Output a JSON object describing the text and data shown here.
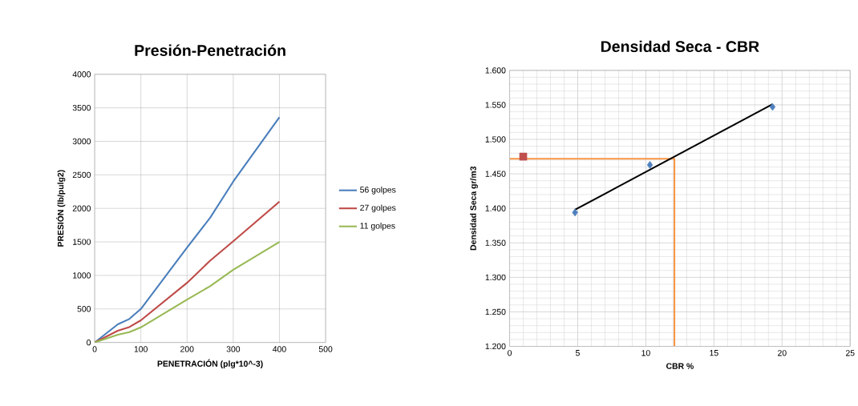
{
  "chart_data": [
    {
      "type": "line",
      "title": "Presión-Penetración",
      "xlabel": "PENETRACIÓN (plg*10^-3)",
      "ylabel": "PRESIÓN (lb/pulg2)",
      "xlim": [
        0,
        500
      ],
      "xticks": [
        0,
        100,
        200,
        300,
        400,
        500
      ],
      "ylim": [
        0,
        4000
      ],
      "yticks": [
        0,
        500,
        1000,
        1500,
        2000,
        2500,
        3000,
        3500,
        4000
      ],
      "grid": true,
      "legend": "right",
      "marker": "none",
      "x": [
        0,
        50,
        75,
        100,
        200,
        250,
        300,
        400
      ],
      "series": [
        {
          "name": "56 golpes",
          "color": "#4a7ebb",
          "values": [
            0,
            270,
            350,
            500,
            1415,
            1860,
            2400,
            3360
          ]
        },
        {
          "name": "27 golpes",
          "color": "#be4b48",
          "values": [
            0,
            175,
            230,
            330,
            890,
            1220,
            1510,
            2100
          ]
        },
        {
          "name": "11 golpes",
          "color": "#98b954",
          "values": [
            0,
            115,
            155,
            225,
            640,
            840,
            1085,
            1500
          ]
        }
      ]
    },
    {
      "type": "scatter",
      "title": "Densidad Seca - CBR",
      "xlabel": "CBR %",
      "ylabel": "Densidad  Seca gr/m3",
      "xlim": [
        0,
        25
      ],
      "xticks": [
        0,
        5,
        10,
        15,
        20,
        25
      ],
      "ylim": [
        1.2,
        1.6
      ],
      "yticks": [
        {
          "value": 1.2,
          "label": "1.200"
        },
        {
          "value": 1.25,
          "label": "1.250"
        },
        {
          "value": 1.3,
          "label": "1.300"
        },
        {
          "value": 1.35,
          "label": "1.350"
        },
        {
          "value": 1.4,
          "label": "1.400"
        },
        {
          "value": 1.45,
          "label": "1.450"
        },
        {
          "value": 1.5,
          "label": "1.500"
        },
        {
          "value": 1.55,
          "label": "1.550"
        },
        {
          "value": 1.6,
          "label": "1.600"
        }
      ],
      "grid": true,
      "legend": false,
      "series": [
        {
          "type": "line",
          "color": "#f79646",
          "x": [
            0,
            12.1,
            12.1
          ],
          "values": [
            1.472,
            1.472,
            1.2
          ],
          "marker": "none"
        },
        {
          "type": "line",
          "color": "#000000",
          "x": [
            4.8,
            19.3
          ],
          "values": [
            1.398,
            1.551
          ],
          "marker": "none"
        },
        {
          "type": "scatter",
          "color": "#4f81bd",
          "x": [
            4.8,
            10.3,
            19.3
          ],
          "values": [
            1.394,
            1.463,
            1.547
          ],
          "marker": "diamond"
        },
        {
          "type": "scatter",
          "color": "#c0504d",
          "x": [
            1.0
          ],
          "values": [
            1.475
          ],
          "marker": "square"
        }
      ]
    }
  ]
}
